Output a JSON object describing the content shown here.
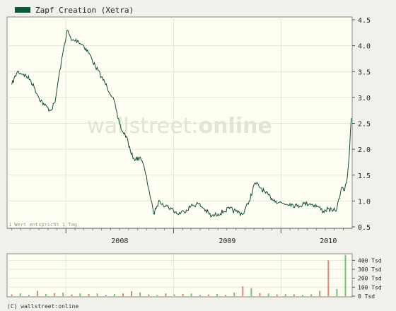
{
  "legend": {
    "label": "Zapf Creation (Xetra)",
    "swatch_color": "#0b5a3e"
  },
  "watermark": {
    "left": "wallstreet",
    "colon": ":",
    "right": "online"
  },
  "note": "1 Wert entspricht 1 Tag",
  "copyright": "(C) wallstreet:online",
  "colors": {
    "line": "#0b4f38",
    "plot_bg": "#fefef2",
    "page_bg": "#f1f1ec",
    "vol_up": "#79c07c",
    "vol_down": "#e0857b"
  },
  "chart_data": [
    {
      "type": "line",
      "title": "Zapf Creation (Xetra)",
      "x_tick_labels": [
        "2008",
        "2009",
        "2010"
      ],
      "y_tick_labels": [
        "4.5",
        "4.0",
        "3.5",
        "3.0",
        "2.5",
        "2.0",
        "1.5",
        "1.0",
        "0.5"
      ],
      "ylim": [
        0.5,
        4.5
      ],
      "grid": true,
      "legend_position": "top-left",
      "series": [
        {
          "name": "Zapf Creation (Xetra)",
          "x": [
            "2007-07-01",
            "2007-07-20",
            "2007-08-10",
            "2007-09-01",
            "2007-09-15",
            "2007-10-01",
            "2007-10-20",
            "2007-11-10",
            "2007-11-25",
            "2007-12-05",
            "2007-12-20",
            "2008-01-05",
            "2008-01-20",
            "2008-02-10",
            "2008-03-01",
            "2008-03-20",
            "2008-04-10",
            "2008-05-01",
            "2008-05-20",
            "2008-06-10",
            "2008-06-25",
            "2008-07-10",
            "2008-07-25",
            "2008-08-10",
            "2008-08-25",
            "2008-09-10",
            "2008-09-25",
            "2008-10-10",
            "2008-10-25",
            "2008-11-05",
            "2008-11-15",
            "2008-11-25",
            "2008-12-10",
            "2008-12-25",
            "2009-01-15",
            "2009-02-05",
            "2009-03-01",
            "2009-03-25",
            "2009-04-15",
            "2009-05-10",
            "2009-06-01",
            "2009-06-20",
            "2009-07-10",
            "2009-08-01",
            "2009-08-25",
            "2009-09-15",
            "2009-10-05",
            "2009-10-25",
            "2009-11-10",
            "2009-12-01",
            "2009-12-15",
            "2010-01-10",
            "2010-02-01",
            "2010-02-25",
            "2010-03-20",
            "2010-04-10",
            "2010-05-05",
            "2010-05-25",
            "2010-06-10",
            "2010-06-25",
            "2010-07-10",
            "2010-07-25",
            "2010-08-05",
            "2010-08-12",
            "2010-08-20",
            "2010-08-28"
          ],
          "y": [
            3.25,
            3.5,
            3.45,
            3.35,
            3.2,
            3.0,
            2.85,
            2.75,
            2.9,
            3.3,
            3.8,
            4.3,
            4.1,
            4.1,
            4.0,
            3.85,
            3.6,
            3.4,
            3.2,
            3.0,
            2.6,
            2.35,
            2.25,
            1.9,
            1.8,
            1.85,
            1.6,
            1.2,
            0.75,
            0.9,
            1.0,
            0.95,
            0.9,
            0.85,
            0.75,
            0.8,
            0.9,
            0.95,
            0.85,
            0.7,
            0.75,
            0.8,
            0.85,
            0.8,
            0.75,
            1.0,
            1.35,
            1.25,
            1.15,
            1.05,
            1.0,
            0.95,
            0.95,
            0.9,
            0.95,
            0.95,
            0.9,
            0.8,
            0.85,
            0.8,
            0.85,
            1.25,
            1.2,
            1.35,
            1.8,
            2.6
          ]
        }
      ]
    },
    {
      "type": "bar",
      "y_tick_labels": [
        "400 Tsd",
        "300 Tsd",
        "200 Tsd",
        "100 Tsd",
        "0 Tsd"
      ],
      "ylim": [
        0,
        450
      ],
      "unit": "Tsd",
      "grid": true,
      "x": [
        "2007-07",
        "2007-08",
        "2007-09",
        "2007-10",
        "2007-11",
        "2007-12",
        "2008-01",
        "2008-02",
        "2008-03",
        "2008-04",
        "2008-05",
        "2008-06",
        "2008-07",
        "2008-08",
        "2008-09",
        "2008-10",
        "2008-11",
        "2008-12",
        "2009-01",
        "2009-02",
        "2009-03",
        "2009-04",
        "2009-05",
        "2009-06",
        "2009-07",
        "2009-08",
        "2009-09",
        "2009-10",
        "2009-11",
        "2009-12",
        "2010-01",
        "2010-02",
        "2010-03",
        "2010-04",
        "2010-05",
        "2010-06",
        "2010-07",
        "2010-07b",
        "2010-08",
        "2010-08b"
      ],
      "values": [
        20,
        30,
        15,
        60,
        25,
        35,
        40,
        20,
        30,
        25,
        30,
        15,
        25,
        30,
        55,
        40,
        20,
        15,
        30,
        20,
        25,
        30,
        15,
        20,
        25,
        15,
        40,
        110,
        90,
        35,
        30,
        20,
        25,
        20,
        15,
        20,
        60,
        400,
        80,
        460
      ],
      "directions": [
        "down",
        "up",
        "down",
        "down",
        "up",
        "down",
        "up",
        "down",
        "up",
        "down",
        "up",
        "down",
        "up",
        "down",
        "down",
        "up",
        "down",
        "up",
        "down",
        "up",
        "down",
        "up",
        "up",
        "down",
        "up",
        "down",
        "up",
        "down",
        "up",
        "down",
        "up",
        "down",
        "up",
        "down",
        "up",
        "up",
        "down",
        "down",
        "up",
        "up"
      ]
    }
  ]
}
